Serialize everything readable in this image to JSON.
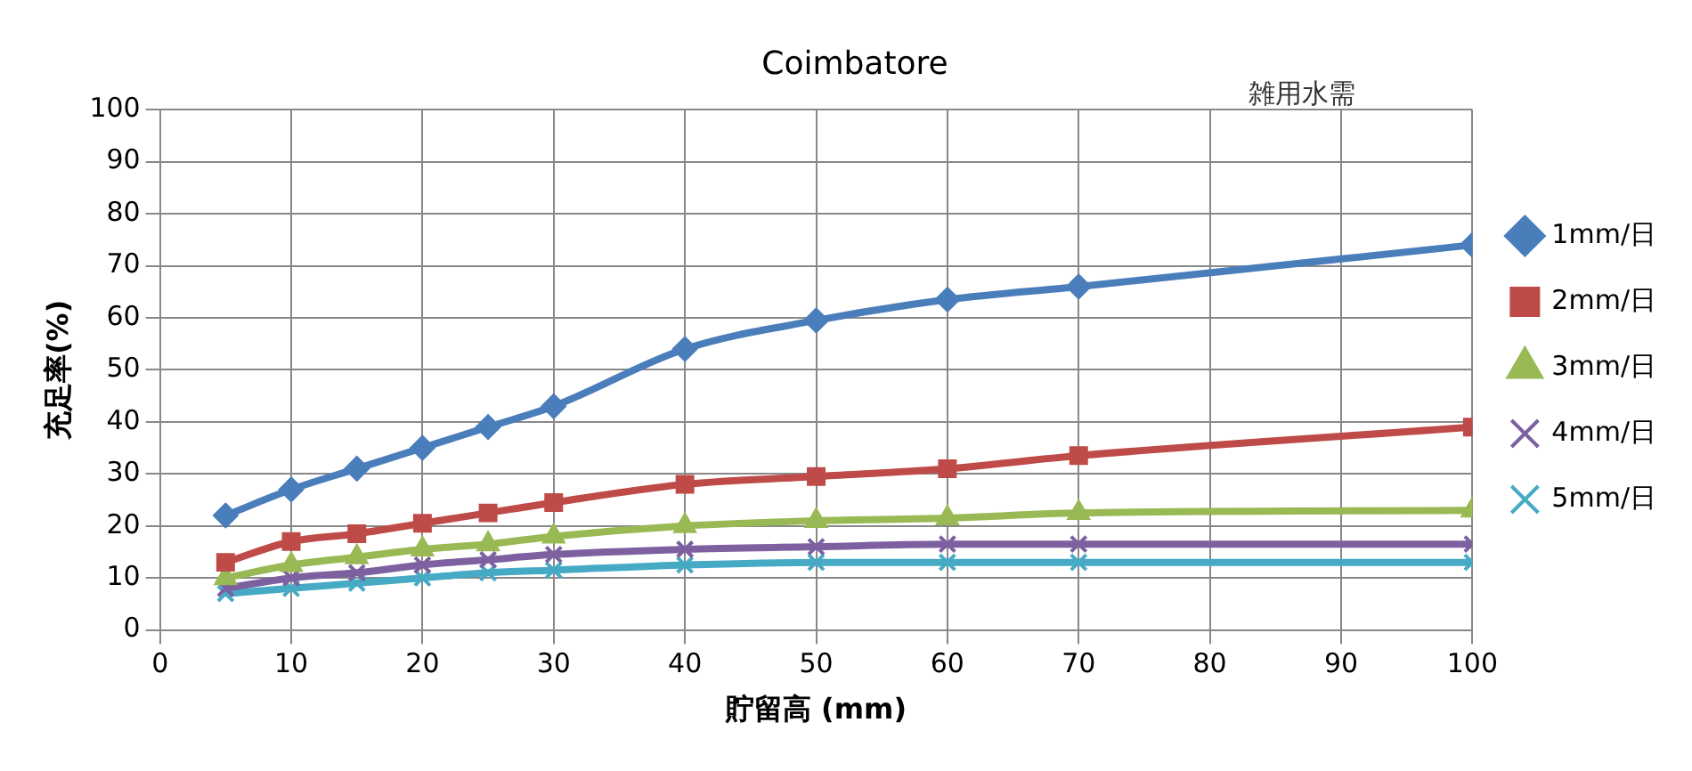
{
  "chart_data": {
    "type": "line",
    "title": "Coimbatore",
    "xlabel": "貯留高 (mm)",
    "ylabel": "充足率(%)",
    "annotations": [
      "雑用水需"
    ],
    "x": [
      5,
      10,
      15,
      20,
      25,
      30,
      40,
      50,
      60,
      70,
      100
    ],
    "xlim": [
      0,
      100
    ],
    "xticks": [
      0,
      10,
      20,
      30,
      40,
      50,
      60,
      70,
      80,
      90,
      100
    ],
    "ylim": [
      0,
      100
    ],
    "yticks": [
      0,
      10,
      20,
      30,
      40,
      50,
      60,
      70,
      80,
      90,
      100
    ],
    "grid": true,
    "legend": "right",
    "line_style": "solid",
    "series": [
      {
        "name": "1mm/日",
        "color": "#4a7ebb",
        "marker": "diamond",
        "values": [
          22,
          27,
          31,
          35,
          39,
          43,
          54,
          59.5,
          63.5,
          66,
          74
        ]
      },
      {
        "name": "2mm/日",
        "color": "#be4b48",
        "marker": "square",
        "values": [
          13,
          17,
          18.5,
          20.5,
          22.5,
          24.5,
          28,
          29.5,
          31,
          33.5,
          39
        ]
      },
      {
        "name": "3mm/日",
        "color": "#98b954",
        "marker": "triangle",
        "values": [
          10,
          12.5,
          14,
          15.5,
          16.5,
          18,
          20,
          21,
          21.5,
          22.5,
          23
        ]
      },
      {
        "name": "4mm/日",
        "color": "#7d60a0",
        "marker": "cross",
        "values": [
          8,
          10,
          11,
          12.5,
          13.5,
          14.5,
          15.5,
          16,
          16.5,
          16.5,
          16.5
        ]
      },
      {
        "name": "5mm/日",
        "color": "#46aac5",
        "marker": "cross",
        "values": [
          7,
          8,
          9,
          10,
          11,
          11.5,
          12.5,
          13,
          13,
          13,
          13
        ]
      }
    ]
  }
}
